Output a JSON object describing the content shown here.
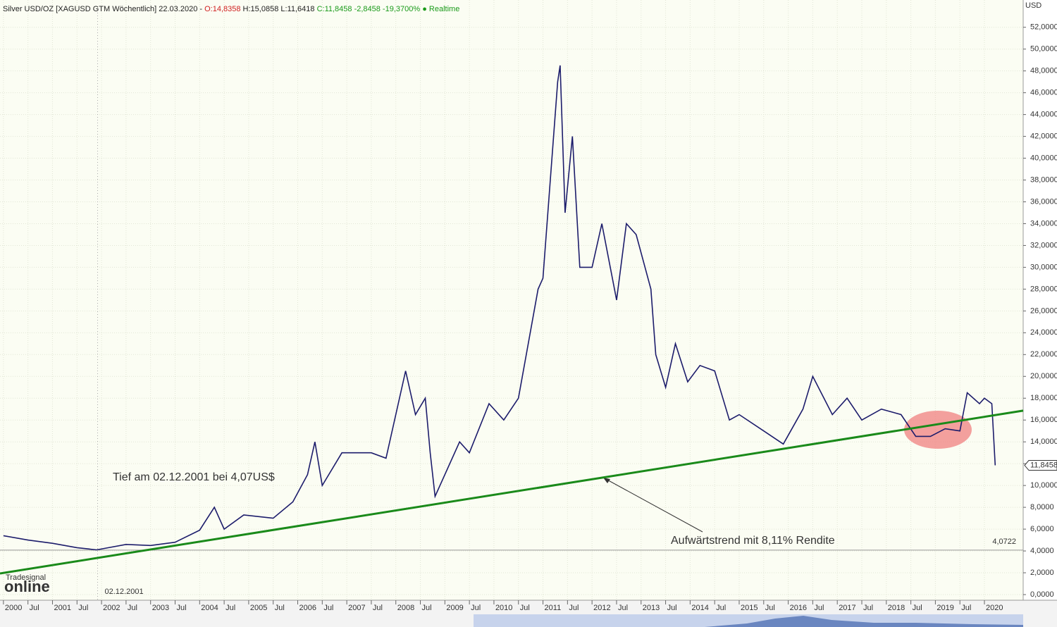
{
  "chart_data": {
    "type": "line",
    "header": {
      "instrument": "Silver USD/OZ [XAGUSD GTM Wöchentlich] 22.03.2020 -",
      "open": "O:14,8358",
      "high_low": "H:15,0858 L:11,6418",
      "close": "C:11,8458 -2,8458 -19,3700%",
      "realtime": "● Realtime"
    },
    "y_axis_unit": "USD",
    "xlim": [
      1999.93,
      2020.79
    ],
    "ylim": [
      0,
      54.5
    ],
    "xticks": [
      {
        "value": 2000,
        "label": "2000"
      },
      {
        "value": 2000.5,
        "label": "Jul"
      },
      {
        "value": 2001,
        "label": "2001"
      },
      {
        "value": 2001.5,
        "label": "Jul"
      },
      {
        "value": 2002,
        "label": "2002"
      },
      {
        "value": 2002.5,
        "label": "Jul"
      },
      {
        "value": 2003,
        "label": "2003"
      },
      {
        "value": 2003.5,
        "label": "Jul"
      },
      {
        "value": 2004,
        "label": "2004"
      },
      {
        "value": 2004.5,
        "label": "Jul"
      },
      {
        "value": 2005,
        "label": "2005"
      },
      {
        "value": 2005.5,
        "label": "Jul"
      },
      {
        "value": 2006,
        "label": "2006"
      },
      {
        "value": 2006.5,
        "label": "Jul"
      },
      {
        "value": 2007,
        "label": "2007"
      },
      {
        "value": 2007.5,
        "label": "Jul"
      },
      {
        "value": 2008,
        "label": "2008"
      },
      {
        "value": 2008.5,
        "label": "Jul"
      },
      {
        "value": 2009,
        "label": "2009"
      },
      {
        "value": 2009.5,
        "label": "Jul"
      },
      {
        "value": 2010,
        "label": "2010"
      },
      {
        "value": 2010.5,
        "label": "Jul"
      },
      {
        "value": 2011,
        "label": "2011"
      },
      {
        "value": 2011.5,
        "label": "Jul"
      },
      {
        "value": 2012,
        "label": "2012"
      },
      {
        "value": 2012.5,
        "label": "Jul"
      },
      {
        "value": 2013,
        "label": "2013"
      },
      {
        "value": 2013.5,
        "label": "Jul"
      },
      {
        "value": 2014,
        "label": "2014"
      },
      {
        "value": 2014.5,
        "label": "Jul"
      },
      {
        "value": 2015,
        "label": "2015"
      },
      {
        "value": 2015.5,
        "label": "Jul"
      },
      {
        "value": 2016,
        "label": "2016"
      },
      {
        "value": 2016.5,
        "label": "Jul"
      },
      {
        "value": 2017,
        "label": "2017"
      },
      {
        "value": 2017.5,
        "label": "Jul"
      },
      {
        "value": 2018,
        "label": "2018"
      },
      {
        "value": 2018.5,
        "label": "Jul"
      },
      {
        "value": 2019,
        "label": "2019"
      },
      {
        "value": 2019.5,
        "label": "Jul"
      },
      {
        "value": 2020,
        "label": "2020"
      }
    ],
    "yticks": [
      {
        "value": 0,
        "label": "0,0000"
      },
      {
        "value": 2,
        "label": "2,0000"
      },
      {
        "value": 4,
        "label": "4,0000"
      },
      {
        "value": 6,
        "label": "6,0000"
      },
      {
        "value": 8,
        "label": "8,0000"
      },
      {
        "value": 10,
        "label": "10,0000"
      },
      {
        "value": 12,
        "label": "12,0000"
      },
      {
        "value": 14,
        "label": "14,0000"
      },
      {
        "value": 16,
        "label": "16,0000"
      },
      {
        "value": 18,
        "label": "18,0000"
      },
      {
        "value": 20,
        "label": "20,0000"
      },
      {
        "value": 22,
        "label": "22,0000"
      },
      {
        "value": 24,
        "label": "24,0000"
      },
      {
        "value": 26,
        "label": "26,0000"
      },
      {
        "value": 28,
        "label": "28,0000"
      },
      {
        "value": 30,
        "label": "30,0000"
      },
      {
        "value": 32,
        "label": "32,0000"
      },
      {
        "value": 34,
        "label": "34,0000"
      },
      {
        "value": 36,
        "label": "36,0000"
      },
      {
        "value": 38,
        "label": "38,0000"
      },
      {
        "value": 40,
        "label": "40,0000"
      },
      {
        "value": 42,
        "label": "42,0000"
      },
      {
        "value": 44,
        "label": "44,0000"
      },
      {
        "value": 46,
        "label": "46,0000"
      },
      {
        "value": 48,
        "label": "48,0000"
      },
      {
        "value": 50,
        "label": "50,0000"
      },
      {
        "value": 52,
        "label": "52,0000"
      }
    ],
    "grid": true,
    "series": [
      {
        "color": "#1c1c6b",
        "x": [
          2000.0,
          2000.5,
          2001.0,
          2001.5,
          2001.9,
          2002.5,
          2003.0,
          2003.5,
          2004.0,
          2004.3,
          2004.5,
          2004.9,
          2005.5,
          2005.9,
          2006.2,
          2006.35,
          2006.5,
          2006.9,
          2007.5,
          2007.8,
          2008.2,
          2008.4,
          2008.6,
          2008.7,
          2008.8,
          2009.0,
          2009.3,
          2009.5,
          2009.9,
          2010.2,
          2010.5,
          2010.9,
          2011.0,
          2011.3,
          2011.35,
          2011.45,
          2011.6,
          2011.75,
          2012.0,
          2012.2,
          2012.5,
          2012.7,
          2012.9,
          2013.2,
          2013.3,
          2013.5,
          2013.7,
          2013.95,
          2014.2,
          2014.5,
          2014.8,
          2015.0,
          2015.5,
          2015.9,
          2016.3,
          2016.5,
          2016.9,
          2017.2,
          2017.5,
          2017.9,
          2018.3,
          2018.6,
          2018.9,
          2019.2,
          2019.5,
          2019.65,
          2019.9,
          2020.0,
          2020.15,
          2020.22
        ],
        "values": [
          5.4,
          5.0,
          4.7,
          4.3,
          4.1,
          4.6,
          4.5,
          4.8,
          5.9,
          8.0,
          6.0,
          7.3,
          7.0,
          8.5,
          11,
          14,
          10,
          13,
          13,
          12.5,
          20.5,
          16.5,
          18,
          13,
          9,
          11,
          14,
          13,
          17.5,
          16,
          18,
          28,
          29,
          47,
          48.5,
          35,
          42,
          30,
          30,
          34,
          27,
          34,
          33,
          28,
          22,
          19,
          23,
          19.5,
          21,
          20.5,
          16,
          16.5,
          15,
          13.8,
          17,
          20,
          16.5,
          18,
          16,
          17,
          16.5,
          14.5,
          14.5,
          15.2,
          15.0,
          18.5,
          17.5,
          18.0,
          17.5,
          11.85
        ]
      }
    ],
    "trendline": {
      "color": "#1a8a1a",
      "x": [
        1999.93,
        2020.79
      ],
      "values": [
        1.94,
        16.86
      ]
    },
    "low_line": {
      "value": 4.0722,
      "label": "4,0722"
    },
    "last_price": {
      "value": 11.8458,
      "label": "11,8458"
    },
    "low_date": {
      "value": 2001.92,
      "label": "02.12.2001"
    },
    "annotations": {
      "low_note": "Tief am 02.12.2001 bei 4,07US$",
      "trend_note": "Aufwärtstrend mit 8,11% Rendite"
    },
    "logo": {
      "small": "Tradesignal",
      "big": "online"
    }
  }
}
